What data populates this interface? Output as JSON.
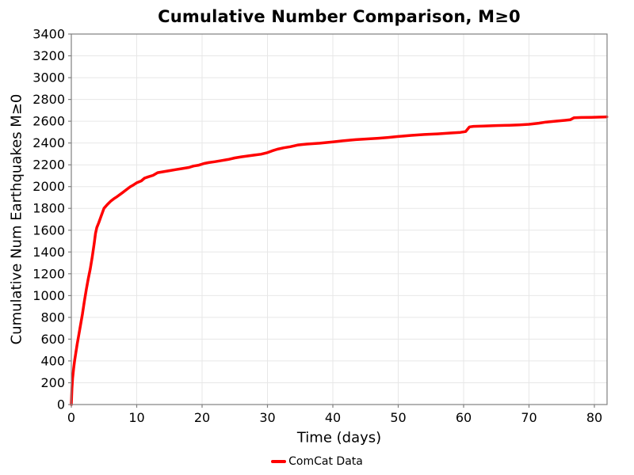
{
  "figure": {
    "background": "#ffffff"
  },
  "chart_data": {
    "type": "line",
    "title": "Cumulative Number Comparison, M≥0",
    "xlabel": "Time (days)",
    "ylabel": "Cumulative Num Earthquakes M≥0",
    "xlim": [
      0,
      81.94
    ],
    "ylim": [
      0,
      3400
    ],
    "xticks": [
      0,
      10,
      20,
      30,
      40,
      50,
      60,
      70,
      80
    ],
    "yticks": [
      0,
      200,
      400,
      600,
      800,
      1000,
      1200,
      1400,
      1600,
      1800,
      2000,
      2200,
      2400,
      2600,
      2800,
      3000,
      3200,
      3400
    ],
    "grid": true,
    "legend": {
      "position": "lower-center",
      "entries": [
        {
          "label": "ComCat Data",
          "color": "#ff0000"
        }
      ]
    },
    "colors": {
      "series": "#ff0000",
      "grid": "#e7e7e7",
      "spine": "#808080",
      "tick": "#808080",
      "text": "#000000",
      "background": "#ffffff"
    },
    "series": [
      {
        "name": "ComCat Data",
        "color": "#ff0000",
        "linewidth": 3.5,
        "points": [
          [
            0,
            0
          ],
          [
            0.05,
            80
          ],
          [
            0.1,
            150
          ],
          [
            0.2,
            240
          ],
          [
            0.35,
            330
          ],
          [
            0.5,
            400
          ],
          [
            0.7,
            480
          ],
          [
            0.9,
            555
          ],
          [
            1.1,
            625
          ],
          [
            1.4,
            725
          ],
          [
            1.7,
            830
          ],
          [
            2.0,
            950
          ],
          [
            2.3,
            1060
          ],
          [
            2.6,
            1155
          ],
          [
            2.9,
            1245
          ],
          [
            3.2,
            1355
          ],
          [
            3.5,
            1480
          ],
          [
            3.7,
            1570
          ],
          [
            3.9,
            1625
          ],
          [
            4.2,
            1668
          ],
          [
            4.6,
            1735
          ],
          [
            5.0,
            1800
          ],
          [
            5.5,
            1835
          ],
          [
            6.0,
            1865
          ],
          [
            6.5,
            1888
          ],
          [
            7.0,
            1908
          ],
          [
            7.5,
            1930
          ],
          [
            8.0,
            1952
          ],
          [
            8.5,
            1975
          ],
          [
            9.0,
            1998
          ],
          [
            9.5,
            2015
          ],
          [
            10.0,
            2035
          ],
          [
            10.7,
            2052
          ],
          [
            11.2,
            2078
          ],
          [
            11.8,
            2090
          ],
          [
            12.5,
            2103
          ],
          [
            13.2,
            2128
          ],
          [
            14.0,
            2136
          ],
          [
            15.0,
            2146
          ],
          [
            16.0,
            2156
          ],
          [
            17.0,
            2166
          ],
          [
            18.0,
            2176
          ],
          [
            18.7,
            2189
          ],
          [
            19.5,
            2197
          ],
          [
            20.3,
            2212
          ],
          [
            21.0,
            2220
          ],
          [
            22.0,
            2229
          ],
          [
            23.0,
            2239
          ],
          [
            24.0,
            2249
          ],
          [
            25.0,
            2263
          ],
          [
            26.0,
            2273
          ],
          [
            27.0,
            2281
          ],
          [
            28.0,
            2289
          ],
          [
            29.0,
            2297
          ],
          [
            30.0,
            2312
          ],
          [
            30.7,
            2328
          ],
          [
            31.5,
            2343
          ],
          [
            32.5,
            2356
          ],
          [
            33.5,
            2366
          ],
          [
            34.7,
            2382
          ],
          [
            36.0,
            2390
          ],
          [
            38.0,
            2398
          ],
          [
            40.0,
            2410
          ],
          [
            41.5,
            2420
          ],
          [
            43.5,
            2431
          ],
          [
            45.0,
            2437
          ],
          [
            47.0,
            2444
          ],
          [
            48.5,
            2451
          ],
          [
            50.0,
            2460
          ],
          [
            52.0,
            2470
          ],
          [
            54.0,
            2478
          ],
          [
            56.0,
            2484
          ],
          [
            58.0,
            2492
          ],
          [
            59.5,
            2498
          ],
          [
            60.3,
            2505
          ],
          [
            60.9,
            2548
          ],
          [
            61.5,
            2553
          ],
          [
            63.0,
            2556
          ],
          [
            65.0,
            2560
          ],
          [
            67.0,
            2563
          ],
          [
            68.5,
            2567
          ],
          [
            70.0,
            2572
          ],
          [
            71.5,
            2582
          ],
          [
            72.6,
            2592
          ],
          [
            74.0,
            2600
          ],
          [
            75.5,
            2608
          ],
          [
            76.3,
            2613
          ],
          [
            76.9,
            2632
          ],
          [
            78.0,
            2634
          ],
          [
            79.5,
            2636
          ],
          [
            81.0,
            2638
          ],
          [
            81.9,
            2640
          ]
        ]
      }
    ]
  }
}
